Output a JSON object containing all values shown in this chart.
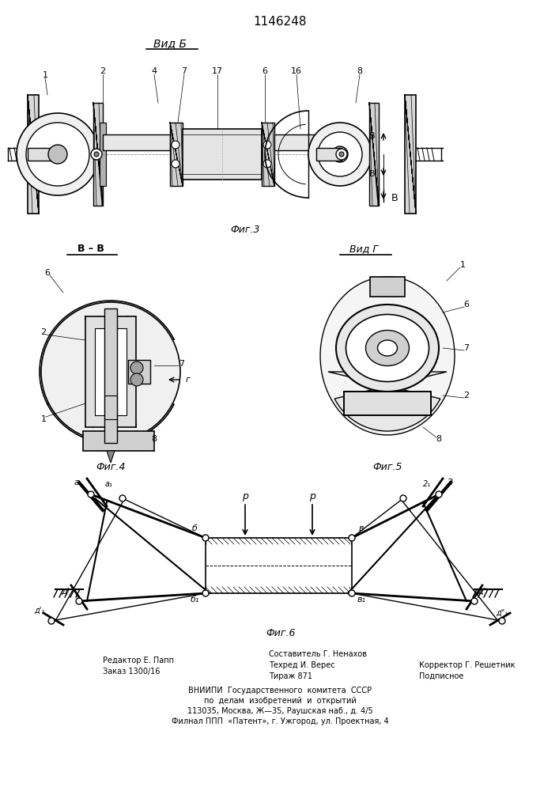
{
  "patent_number": "1146248",
  "background_color": "#ffffff",
  "fig_width": 7.07,
  "fig_height": 10.0,
  "dpi": 100,
  "view_b_label": "Вид Б",
  "fig3_label": "Фиг.3",
  "view_bb_label": "В – В",
  "view_g_label": "Вид Г",
  "fig4_label": "Фиг.4",
  "fig5_label": "Фиг.5",
  "fig6_label": "Фиг.6",
  "footer_col1": [
    "Редактор Е. Папп",
    "Заказ 1300/16"
  ],
  "footer_col2": [
    "Составитель Г. Ненахов",
    "Техред И. Верес",
    "Тираж 871"
  ],
  "footer_col3": [
    "Корректор Г. Решетник",
    "Подписное"
  ],
  "footer_center": [
    "ВНИИПИ  Государственного  комитета  СССР",
    "по  делам  изобретений  и  открытий",
    "113035, Москва, Ж—35, Раушская наб., д. 4/5",
    "Филнал ППП  «Патент», г. Ужгород, ул. Проектная, 4"
  ]
}
